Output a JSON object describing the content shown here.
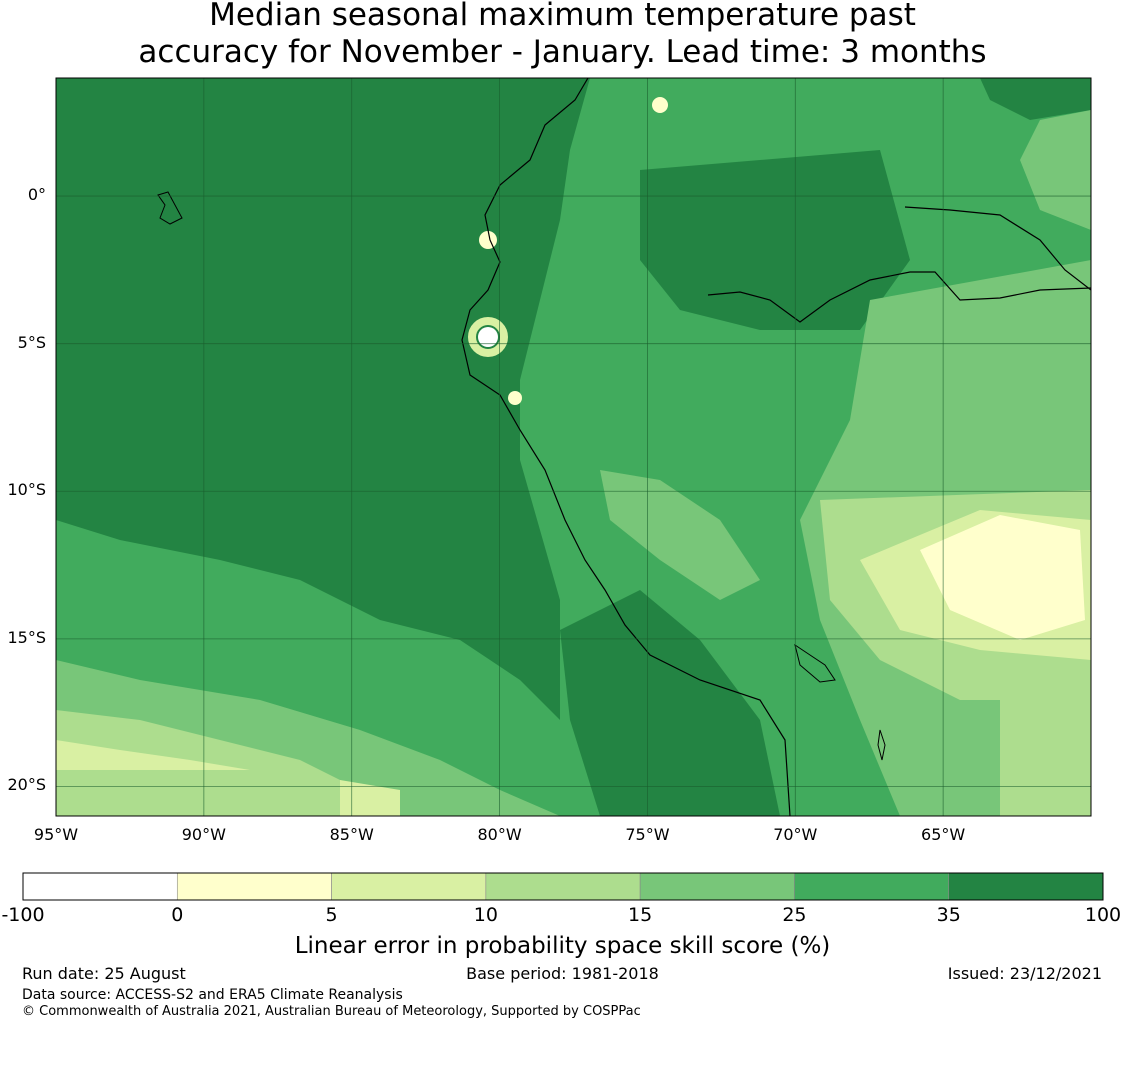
{
  "title_line1": "Median seasonal maximum temperature past",
  "title_line2": "accuracy for November - January. Lead time: 3 months",
  "map": {
    "lon_range": [
      -95,
      -60
    ],
    "lat_range": [
      -21,
      4
    ],
    "lon_ticks": [
      "95°W",
      "90°W",
      "85°W",
      "80°W",
      "75°W",
      "70°W",
      "65°W"
    ],
    "lat_ticks": [
      "0°",
      "5°S",
      "10°S",
      "15°S",
      "20°S"
    ],
    "grid": true,
    "predominant_skill_band": "35 to 100"
  },
  "colorbar": {
    "ticks": [
      "-100",
      "0",
      "5",
      "10",
      "15",
      "25",
      "35",
      "100"
    ],
    "colors": [
      "#ffffff",
      "#ffffcc",
      "#d9f0a3",
      "#addd8e",
      "#78c679",
      "#41ab5d",
      "#238443"
    ],
    "label": "Linear error in probability space skill score (%)"
  },
  "footer": {
    "run_date": "Run date: 25 August",
    "base_period": "Base period: 1981-2018",
    "issued": "Issued: 23/12/2021",
    "data_source": "Data source: ACCESS-S2 and ERA5 Climate Reanalysis",
    "copyright": "© Commonwealth of Australia 2021, Australian Bureau of Meteorology, Supported by COSPPac"
  }
}
